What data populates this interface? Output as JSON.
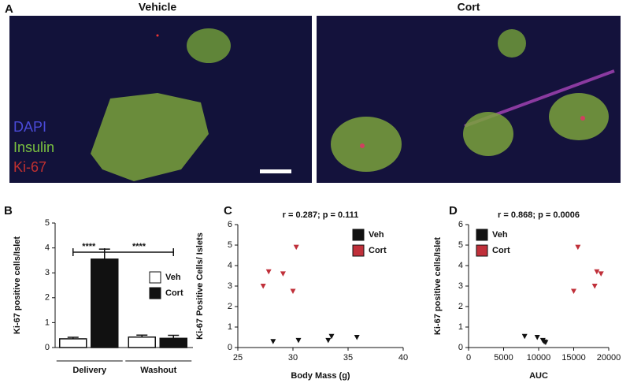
{
  "panel_a": {
    "label": "A",
    "titles": [
      "Vehicle",
      "Cort"
    ],
    "stain_labels": [
      "DAPI",
      "Insulin",
      "Ki-67"
    ]
  },
  "chart_data": [
    {
      "type": "bar",
      "panel_label": "B",
      "ylabel": "Ki-67 positive  cells/Islet",
      "categories": [
        "Delivery",
        "Washout"
      ],
      "series": [
        {
          "name": "Veh",
          "color": "#ffffff",
          "values": [
            0.35,
            0.42
          ],
          "errors": [
            0.06,
            0.08
          ]
        },
        {
          "name": "Cort",
          "color": "#111111",
          "values": [
            3.55,
            0.37
          ],
          "errors": [
            0.4,
            0.12
          ]
        }
      ],
      "annotations": [
        "****",
        "****"
      ],
      "ylim": [
        0,
        5
      ],
      "yticks": [
        0,
        1,
        2,
        3,
        4,
        5
      ]
    },
    {
      "type": "scatter",
      "panel_label": "C",
      "title": "r = 0.287; p = 0.111",
      "xlabel": "Body Mass (g)",
      "ylabel": "Ki-67 Positive Cells/ Islets",
      "series": [
        {
          "name": "Veh",
          "color": "#111111",
          "x": [
            28.2,
            30.5,
            33.2,
            33.5,
            35.8
          ],
          "values": [
            0.3,
            0.35,
            0.35,
            0.55,
            0.5
          ]
        },
        {
          "name": "Cort",
          "color": "#c0303a",
          "x": [
            27.3,
            27.8,
            29.1,
            30,
            30.3
          ],
          "values": [
            3.0,
            3.7,
            3.6,
            2.75,
            4.9
          ]
        }
      ],
      "xlim": [
        25,
        40
      ],
      "xticks": [
        25,
        30,
        35,
        40
      ],
      "ylim": [
        0,
        6
      ],
      "yticks": [
        0,
        1,
        2,
        3,
        4,
        5,
        6
      ]
    },
    {
      "type": "scatter",
      "panel_label": "D",
      "title": "r = 0.868; p = 0.0006",
      "xlabel": "AUC",
      "ylabel": "Ki-67 positive cells/Islet",
      "series": [
        {
          "name": "Veh",
          "color": "#111111",
          "x": [
            8000,
            9800,
            10600,
            10800,
            11000
          ],
          "values": [
            0.55,
            0.5,
            0.35,
            0.28,
            0.25
          ]
        },
        {
          "name": "Cort",
          "color": "#c0303a",
          "x": [
            15000,
            15600,
            18000,
            18300,
            18900
          ],
          "values": [
            2.75,
            4.9,
            3.0,
            3.7,
            3.6
          ]
        }
      ],
      "xlim": [
        0,
        20000
      ],
      "xticks": [
        0,
        5000,
        10000,
        15000,
        20000
      ],
      "ylim": [
        0,
        6
      ],
      "yticks": [
        0,
        1,
        2,
        3,
        4,
        5,
        6
      ]
    }
  ]
}
